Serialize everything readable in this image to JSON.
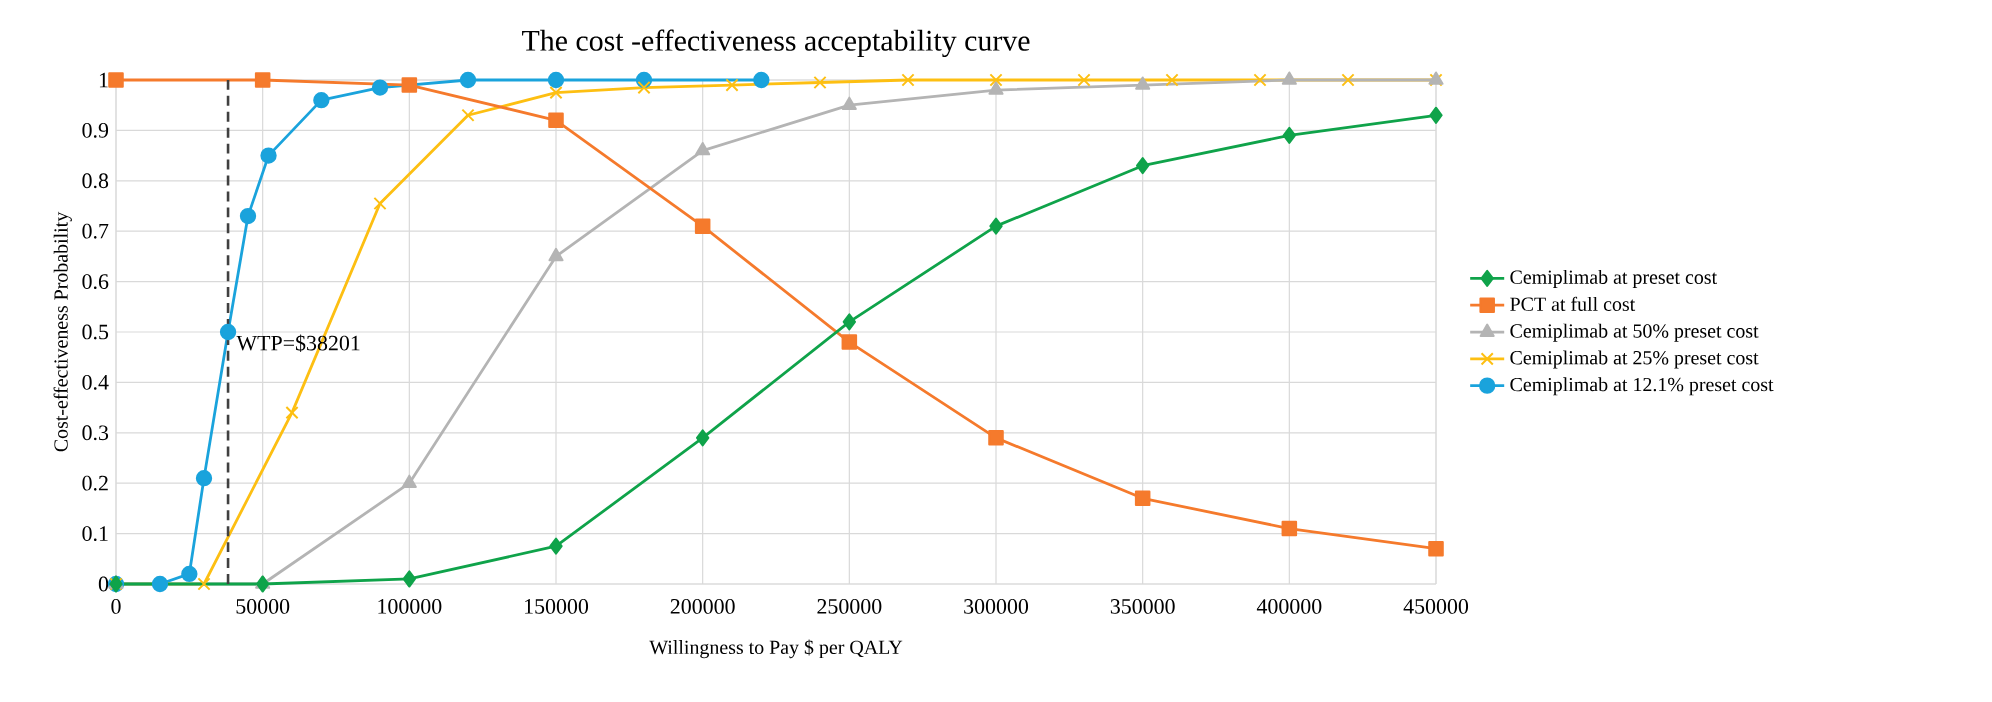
{
  "chart_data": {
    "type": "line",
    "title": "The cost -effectiveness acceptability curve",
    "xlabel": "Willingness to Pay $ per QALY",
    "ylabel": "Cost-effectiveness Probability",
    "xlim": [
      0,
      450000
    ],
    "ylim": [
      0,
      1
    ],
    "xticks": [
      0,
      50000,
      100000,
      150000,
      200000,
      250000,
      300000,
      350000,
      400000,
      450000
    ],
    "yticks": [
      0,
      0.1,
      0.2,
      0.3,
      0.4,
      0.5,
      0.6,
      0.7,
      0.8,
      0.9,
      1
    ],
    "grid": true,
    "legend": "right",
    "line_style": "solid",
    "ref_lines": [
      {
        "axis": "x",
        "value": 38201,
        "label": "WTP=$38201",
        "color": "#404040",
        "line_style": "dashed"
      }
    ],
    "series": [
      {
        "name": "Cemiplimab at preset cost",
        "color": "#0fa34a",
        "marker": "diamond",
        "x": [
          0,
          50000,
          100000,
          150000,
          200000,
          250000,
          300000,
          350000,
          400000,
          450000
        ],
        "values": [
          0,
          0,
          0.01,
          0.075,
          0.29,
          0.52,
          0.71,
          0.83,
          0.89,
          0.93
        ]
      },
      {
        "name": "PCT at full cost",
        "color": "#f57a2c",
        "marker": "square",
        "x": [
          0,
          50000,
          100000,
          150000,
          200000,
          250000,
          300000,
          350000,
          400000,
          450000
        ],
        "values": [
          1,
          1,
          0.99,
          0.92,
          0.71,
          0.48,
          0.29,
          0.17,
          0.11,
          0.07
        ]
      },
      {
        "name": "Cemiplimab at 50% preset cost",
        "color": "#b4b4b4",
        "marker": "triangle",
        "x": [
          0,
          50000,
          100000,
          150000,
          200000,
          250000,
          300000,
          350000,
          400000,
          450000
        ],
        "values": [
          0,
          0,
          0.2,
          0.65,
          0.86,
          0.95,
          0.98,
          0.99,
          1,
          1
        ]
      },
      {
        "name": "Cemiplimab at 25% preset cost",
        "color": "#fdbf12",
        "marker": "cross",
        "x": [
          0,
          30000,
          60000,
          90000,
          120000,
          150000,
          180000,
          210000,
          240000,
          270000,
          300000,
          330000,
          360000,
          390000,
          420000,
          450000
        ],
        "values": [
          0,
          0,
          0.34,
          0.755,
          0.93,
          0.975,
          0.985,
          0.99,
          0.995,
          1,
          1,
          1,
          1,
          1,
          1,
          1
        ]
      },
      {
        "name": "Cemiplimab at 12.1% preset cost",
        "color": "#1aa3dc",
        "marker": "circle",
        "x": [
          0,
          15000,
          25000,
          30000,
          38201,
          45000,
          52000,
          70000,
          90000,
          120000,
          150000,
          180000,
          220000
        ],
        "values": [
          0,
          0,
          0.02,
          0.21,
          0.5,
          0.73,
          0.85,
          0.96,
          0.985,
          1,
          1,
          1,
          1
        ]
      }
    ]
  }
}
